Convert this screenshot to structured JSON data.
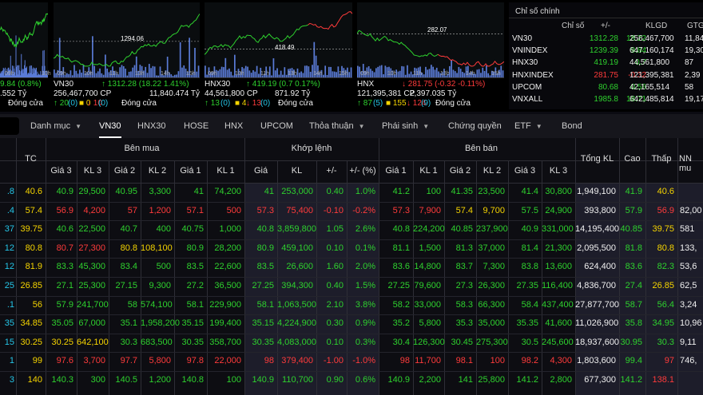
{
  "charts": [
    {
      "price_label": "",
      "times": [
        "09h",
        "10h",
        "11h",
        "13h",
        "14h",
        "15h"
      ],
      "line1": [
        {
          "t": "9.84 (0.8%)",
          "c": "g"
        }
      ],
      "line2": [
        {
          "t": ".552 Tỷ",
          "c": "w"
        }
      ],
      "line3": [
        {
          "t": "Đóng cửa",
          "c": "w"
        }
      ]
    },
    {
      "price_label": "1294.06",
      "times": [
        "09h",
        "10h",
        "11h",
        "13h",
        "14h",
        "15h"
      ],
      "line1": [
        {
          "t": "VN30",
          "c": "w"
        },
        {
          "t": "↑ 1312.28 (18.22  1.41%)",
          "c": "g"
        }
      ],
      "line2": [
        {
          "t": "256,467,700 CP",
          "c": "w"
        },
        {
          "t": "11,840.474 Tỷ",
          "c": "w"
        }
      ],
      "line3": [
        {
          "t": "↑ 20",
          "c": "g"
        },
        {
          "t": "(0)",
          "c": "c"
        },
        {
          "t": "■ 0",
          "c": "y"
        },
        {
          "t": "↓ 10",
          "c": "r"
        },
        {
          "t": "(0)",
          "c": "c"
        },
        {
          "t": "Đóng cửa",
          "c": "w"
        }
      ]
    },
    {
      "price_label": "418.49",
      "times": [
        "09h",
        "10h",
        "11h",
        "13h",
        "14h",
        "15h"
      ],
      "line1": [
        {
          "t": "HNX30",
          "c": "w"
        },
        {
          "t": "↑ 419.19  (0.7  0.17%)",
          "c": "g"
        }
      ],
      "line2": [
        {
          "t": "44,561,800 CP",
          "c": "w"
        },
        {
          "t": "871.92 Tỷ",
          "c": "w"
        }
      ],
      "line3": [
        {
          "t": "↑ 13",
          "c": "g"
        },
        {
          "t": "(0)",
          "c": "c"
        },
        {
          "t": "■ 4",
          "c": "y"
        },
        {
          "t": "↓ 13",
          "c": "r"
        },
        {
          "t": "(0)",
          "c": "c"
        },
        {
          "t": "Đóng cửa",
          "c": "w"
        }
      ]
    },
    {
      "price_label": "282.07",
      "times": [
        "09h",
        "10h",
        "11h",
        "13h",
        "14h",
        "15h"
      ],
      "line1": [
        {
          "t": "HNX",
          "c": "w"
        },
        {
          "t": "↓ 281.75  (-0.32  -0.11%)",
          "c": "r"
        }
      ],
      "line2": [
        {
          "t": "121,395,381 CP",
          "c": "w"
        },
        {
          "t": "2,397.035 Tỷ",
          "c": "w"
        }
      ],
      "line3": [
        {
          "t": "↑ 87",
          "c": "g"
        },
        {
          "t": "(5)",
          "c": "c"
        },
        {
          "t": "■ 155",
          "c": "y"
        },
        {
          "t": "↓ 124",
          "c": "r"
        },
        {
          "t": "(9)",
          "c": "c"
        },
        {
          "t": "Đóng cửa",
          "c": "w"
        }
      ]
    }
  ],
  "index_panel": {
    "tab": "Chỉ số chính",
    "headers": [
      "Chỉ số",
      "+/-",
      "KLGD",
      "GTG"
    ],
    "rows": [
      {
        "name": "VN30",
        "value": "1312.28",
        "change": "18.22",
        "vol": "256,467,700",
        "gt": "11,84",
        "c": "g"
      },
      {
        "name": "VNINDEX",
        "value": "1239.39",
        "change": "9.84",
        "vol": "647,160,174",
        "gt": "19,30",
        "c": "g"
      },
      {
        "name": "HNX30",
        "value": "419.19",
        "change": "0.7",
        "vol": "44,561,800",
        "gt": "87",
        "c": "g"
      },
      {
        "name": "HNXINDEX",
        "value": "281.75",
        "change": "-0.32",
        "vol": "121,395,381",
        "gt": "2,39",
        "c": "r"
      },
      {
        "name": "UPCOM",
        "value": "80.68",
        "change": "0.56",
        "vol": "42,165,514",
        "gt": "58",
        "c": "g"
      },
      {
        "name": "VNXALL",
        "value": "1985.8",
        "change": "18.71",
        "vol": "642,485,814",
        "gt": "19,17",
        "c": "g"
      }
    ]
  },
  "nav": {
    "items": [
      {
        "label": "Danh mục",
        "chevron": true
      },
      {
        "label": "VN30",
        "active": true
      },
      {
        "label": "HNX30"
      },
      {
        "label": "HOSE"
      },
      {
        "label": "HNX"
      },
      {
        "label": "UPCOM"
      },
      {
        "label": "Thỏa thuận",
        "chevron": true
      },
      {
        "label": "Phái sinh",
        "chevron": true
      },
      {
        "label": "Chứng quyền"
      },
      {
        "label": "ETF",
        "chevron": true
      },
      {
        "label": "Bond"
      }
    ]
  },
  "board": {
    "groups": {
      "ben_mua": "Bên mua",
      "khop_lenh": "Khớp lệnh",
      "ben_ban": "Bên bán"
    },
    "columns": [
      "TC",
      "Giá 3",
      "KL 3",
      "Giá 2",
      "KL 2",
      "Giá 1",
      "KL 1",
      "Giá",
      "KL",
      "+/-",
      "+/- (%)",
      "Giá 1",
      "KL 1",
      "Giá 2",
      "KL 2",
      "Giá 3",
      "KL 3",
      "Tổng KL",
      "Cao",
      "Thấp",
      "NN mu"
    ],
    "rows": [
      {
        "c": [
          "c",
          "y",
          "g",
          "g",
          "g",
          "g",
          "g",
          "g",
          "g",
          "g",
          "g",
          "g",
          "g",
          "g",
          "g",
          "g",
          "g",
          "g",
          "w",
          "g",
          "y",
          "w"
        ],
        "v": [
          ".8",
          "40.6",
          "40.9",
          "29,500",
          "40.95",
          "3,300",
          "41",
          "74,200",
          "41",
          "253,000",
          "0.40",
          "1.0%",
          "41.2",
          "100",
          "41.35",
          "23,500",
          "41.4",
          "30,800",
          "1,949,100",
          "41.9",
          "40.6",
          ""
        ]
      },
      {
        "c": [
          "c",
          "y",
          "r",
          "r",
          "r",
          "r",
          "r",
          "r",
          "r",
          "r",
          "r",
          "r",
          "r",
          "r",
          "y",
          "y",
          "g",
          "g",
          "w",
          "g",
          "r",
          "w"
        ],
        "v": [
          ".4",
          "57.4",
          "56.9",
          "4,200",
          "57",
          "1,200",
          "57.1",
          "500",
          "57.3",
          "75,400",
          "-0.10",
          "-0.2%",
          "57.3",
          "7,900",
          "57.4",
          "9,700",
          "57.5",
          "24,900",
          "393,800",
          "57.9",
          "56.9",
          "82,00"
        ]
      },
      {
        "c": [
          "c",
          "y",
          "g",
          "g",
          "g",
          "g",
          "g",
          "g",
          "g",
          "g",
          "g",
          "g",
          "g",
          "g",
          "g",
          "g",
          "g",
          "g",
          "w",
          "g",
          "y",
          "w"
        ],
        "v": [
          "37",
          "39.75",
          "40.6",
          "22,500",
          "40.7",
          "400",
          "40.75",
          "1,000",
          "40.8",
          "3,859,800",
          "1.05",
          "2.6%",
          "40.8",
          "224,200",
          "40.85",
          "237,900",
          "40.9",
          "331,000",
          "14,195,400",
          "40.85",
          "39.75",
          "581"
        ]
      },
      {
        "c": [
          "c",
          "y",
          "r",
          "r",
          "y",
          "y",
          "g",
          "g",
          "g",
          "g",
          "g",
          "g",
          "g",
          "g",
          "g",
          "g",
          "g",
          "g",
          "w",
          "g",
          "y",
          "w"
        ],
        "v": [
          "12",
          "80.8",
          "80.7",
          "27,300",
          "80.8",
          "108,100",
          "80.9",
          "28,200",
          "80.9",
          "459,100",
          "0.10",
          "0.1%",
          "81.1",
          "1,500",
          "81.3",
          "37,000",
          "81.4",
          "21,300",
          "2,095,500",
          "81.8",
          "80.8",
          "133,"
        ]
      },
      {
        "c": [
          "c",
          "y",
          "g",
          "g",
          "g",
          "g",
          "g",
          "g",
          "g",
          "g",
          "g",
          "g",
          "g",
          "g",
          "g",
          "g",
          "g",
          "g",
          "w",
          "g",
          "g",
          "w"
        ],
        "v": [
          "12",
          "81.9",
          "83.3",
          "45,300",
          "83.4",
          "500",
          "83.5",
          "22,600",
          "83.5",
          "26,600",
          "1.60",
          "2.0%",
          "83.6",
          "14,800",
          "83.7",
          "7,300",
          "83.8",
          "13,600",
          "624,400",
          "83.6",
          "82.3",
          "53,6"
        ]
      },
      {
        "c": [
          "c",
          "y",
          "g",
          "g",
          "g",
          "g",
          "g",
          "g",
          "g",
          "g",
          "g",
          "g",
          "g",
          "g",
          "g",
          "g",
          "g",
          "g",
          "w",
          "g",
          "y",
          "w"
        ],
        "v": [
          "25",
          "26.85",
          "27.1",
          "25,300",
          "27.15",
          "9,300",
          "27.2",
          "36,500",
          "27.25",
          "394,300",
          "0.40",
          "1.5%",
          "27.25",
          "79,600",
          "27.3",
          "26,300",
          "27.35",
          "116,400",
          "4,836,700",
          "27.4",
          "26.85",
          "62,5"
        ]
      },
      {
        "c": [
          "c",
          "y",
          "g",
          "g",
          "g",
          "g",
          "g",
          "g",
          "g",
          "g",
          "g",
          "g",
          "g",
          "g",
          "g",
          "g",
          "g",
          "g",
          "w",
          "g",
          "g",
          "w"
        ],
        "v": [
          ".1",
          "56",
          "57.9",
          "241,700",
          "58",
          "574,100",
          "58.1",
          "229,900",
          "58.1",
          "1,063,500",
          "2.10",
          "3.8%",
          "58.2",
          "33,000",
          "58.3",
          "66,300",
          "58.4",
          "437,400",
          "27,877,700",
          "58.7",
          "56.4",
          "3,24"
        ]
      },
      {
        "c": [
          "c",
          "y",
          "g",
          "g",
          "g",
          "g",
          "g",
          "g",
          "g",
          "g",
          "g",
          "g",
          "g",
          "g",
          "g",
          "g",
          "g",
          "g",
          "w",
          "g",
          "g",
          "w"
        ],
        "v": [
          "35",
          "34.85",
          "35.05",
          "67,000",
          "35.1",
          "1,958,200",
          "35.15",
          "199,400",
          "35.15",
          "4,224,900",
          "0.30",
          "0.9%",
          "35.2",
          "5,800",
          "35.3",
          "35,000",
          "35.35",
          "41,600",
          "11,026,900",
          "35.8",
          "34.95",
          "10,96"
        ]
      },
      {
        "c": [
          "c",
          "y",
          "y",
          "y",
          "g",
          "g",
          "g",
          "g",
          "g",
          "g",
          "g",
          "g",
          "g",
          "g",
          "g",
          "g",
          "g",
          "g",
          "w",
          "g",
          "g",
          "w"
        ],
        "v": [
          "15",
          "30.25",
          "30.25",
          "642,100",
          "30.3",
          "683,500",
          "30.35",
          "358,700",
          "30.35",
          "4,083,000",
          "0.10",
          "0.3%",
          "30.4",
          "126,300",
          "30.45",
          "275,300",
          "30.5",
          "245,600",
          "18,937,600",
          "30.95",
          "30.3",
          "9,11"
        ]
      },
      {
        "c": [
          "c",
          "y",
          "r",
          "r",
          "r",
          "r",
          "r",
          "r",
          "r",
          "r",
          "r",
          "r",
          "r",
          "r",
          "r",
          "r",
          "r",
          "r",
          "w",
          "g",
          "r",
          "w"
        ],
        "v": [
          "1",
          "99",
          "97.6",
          "3,700",
          "97.7",
          "5,800",
          "97.8",
          "22,000",
          "98",
          "379,400",
          "-1.00",
          "-1.0%",
          "98",
          "11,700",
          "98.1",
          "100",
          "98.2",
          "4,300",
          "1,803,600",
          "99.4",
          "97",
          "746,"
        ]
      },
      {
        "c": [
          "c",
          "y",
          "g",
          "g",
          "g",
          "g",
          "g",
          "g",
          "g",
          "g",
          "g",
          "g",
          "g",
          "g",
          "g",
          "g",
          "g",
          "g",
          "w",
          "g",
          "r",
          "w"
        ],
        "v": [
          "3",
          "140",
          "140.3",
          "300",
          "140.5",
          "1,200",
          "140.8",
          "100",
          "140.9",
          "110,700",
          "0.90",
          "0.6%",
          "140.9",
          "2,200",
          "141",
          "25,800",
          "141.2",
          "2,800",
          "677,300",
          "141.2",
          "138.1",
          ""
        ]
      }
    ]
  }
}
